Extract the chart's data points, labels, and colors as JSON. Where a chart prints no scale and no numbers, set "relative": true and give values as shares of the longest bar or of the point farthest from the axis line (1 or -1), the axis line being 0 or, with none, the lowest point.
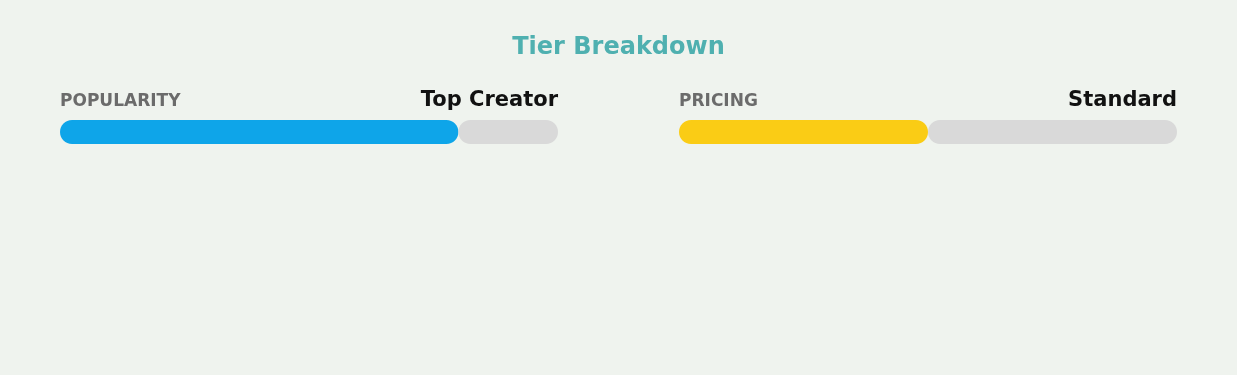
{
  "chart_data": [
    {
      "type": "other",
      "title": "Tier Breakdown"
    },
    {
      "type": "bar",
      "orientation": "horizontal",
      "relative": true,
      "stacked": true,
      "title": "POPULARITY",
      "subtitle": "Top Creator",
      "categories": [
        null
      ],
      "series": [
        {
          "color": "#0ea5e9",
          "values": [
            0.8
          ]
        },
        {
          "color": "#d9d9d9",
          "values": [
            0.2
          ]
        }
      ]
    },
    {
      "type": "bar",
      "orientation": "horizontal",
      "relative": true,
      "stacked": true,
      "title": "PRICING",
      "subtitle": "Standard",
      "categories": [
        null
      ],
      "series": [
        {
          "color": "#facc15",
          "values": [
            0.5
          ]
        },
        {
          "color": "#d9d9d9",
          "values": [
            0.5
          ]
        }
      ]
    }
  ]
}
